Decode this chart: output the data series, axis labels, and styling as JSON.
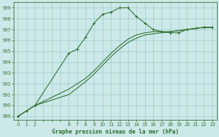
{
  "title": "Graphe pression niveau de la mer (hPa)",
  "bg_color": "#cce8e8",
  "grid_color": "#99cccc",
  "line_color": "#2d6e2d",
  "text_color": "#2d6e2d",
  "xlim": [
    -0.5,
    23.5
  ],
  "ylim": [
    988.7,
    999.5
  ],
  "yticks": [
    989,
    990,
    991,
    992,
    993,
    994,
    995,
    996,
    997,
    998,
    999
  ],
  "xticks_all": [
    0,
    1,
    2,
    3,
    4,
    5,
    6,
    7,
    8,
    9,
    10,
    11,
    12,
    13,
    14,
    15,
    16,
    17,
    18,
    19,
    20,
    21,
    22,
    23
  ],
  "xtick_labels": [
    "0",
    "1",
    "2",
    "",
    "",
    "",
    "6",
    "7",
    "8",
    "9",
    "10",
    "11",
    "12",
    "13",
    "14",
    "15",
    "16",
    "17",
    "18",
    "19",
    "20",
    "21",
    "22",
    "23"
  ],
  "series1_x": [
    0,
    1,
    2,
    6,
    7,
    8,
    9,
    10,
    11,
    12,
    13,
    14,
    15,
    16,
    17,
    18,
    19,
    20,
    21,
    22,
    23
  ],
  "series1_y": [
    989.0,
    989.5,
    990.0,
    994.8,
    995.2,
    996.3,
    997.6,
    998.4,
    998.6,
    999.0,
    999.0,
    998.2,
    997.6,
    997.0,
    996.8,
    996.7,
    996.7,
    997.0,
    997.1,
    997.2,
    997.2
  ],
  "series2_x": [
    0,
    1,
    2,
    6,
    7,
    8,
    9,
    10,
    11,
    12,
    13,
    14,
    15,
    16,
    17,
    18,
    19,
    20,
    21,
    22,
    23
  ],
  "series2_y": [
    989.0,
    989.5,
    990.0,
    991.5,
    992.0,
    992.5,
    993.2,
    994.0,
    994.8,
    995.5,
    996.1,
    996.5,
    996.7,
    996.8,
    996.8,
    996.8,
    996.9,
    997.0,
    997.1,
    997.2,
    997.2
  ],
  "series3_x": [
    0,
    1,
    2,
    6,
    7,
    8,
    9,
    10,
    11,
    12,
    13,
    14,
    15,
    16,
    17,
    18,
    19,
    20,
    21,
    22,
    23
  ],
  "series3_y": [
    989.0,
    989.5,
    990.0,
    991.0,
    991.6,
    992.2,
    992.9,
    993.7,
    994.5,
    995.2,
    995.8,
    996.2,
    996.5,
    996.6,
    996.7,
    996.8,
    996.9,
    997.0,
    997.1,
    997.2,
    997.2
  ],
  "lw": 0.8,
  "marker_size": 2.8,
  "tick_fontsize": 4.8,
  "label_fontsize": 5.8
}
